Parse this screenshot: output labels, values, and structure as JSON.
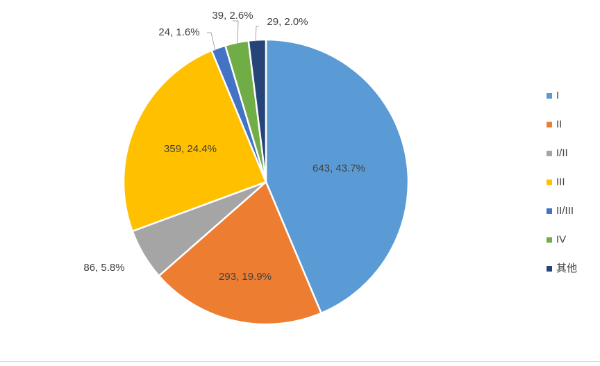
{
  "chart_data": {
    "type": "pie",
    "title": "",
    "slices": [
      {
        "name": "I",
        "value": 643,
        "percent": 43.7,
        "label": "643, 43.7%",
        "color": "#5b9bd5"
      },
      {
        "name": "II",
        "value": 293,
        "percent": 19.9,
        "label": "293, 19.9%",
        "color": "#ed7d31"
      },
      {
        "name": "I/II",
        "value": 86,
        "percent": 5.8,
        "label": "86, 5.8%",
        "color": "#a5a5a5"
      },
      {
        "name": "III",
        "value": 359,
        "percent": 24.4,
        "label": "359, 24.4%",
        "color": "#ffc000"
      },
      {
        "name": "II/III",
        "value": 24,
        "percent": 1.6,
        "label": "24, 1.6%",
        "color": "#4472c4"
      },
      {
        "name": "IV",
        "value": 39,
        "percent": 2.6,
        "label": "39, 2.6%",
        "color": "#70ad47"
      },
      {
        "name": "其他",
        "value": 29,
        "percent": 2.0,
        "label": "29, 2.0%",
        "color": "#264478"
      }
    ],
    "legend_position": "right",
    "start_angle_deg": 0,
    "direction": "clockwise"
  }
}
